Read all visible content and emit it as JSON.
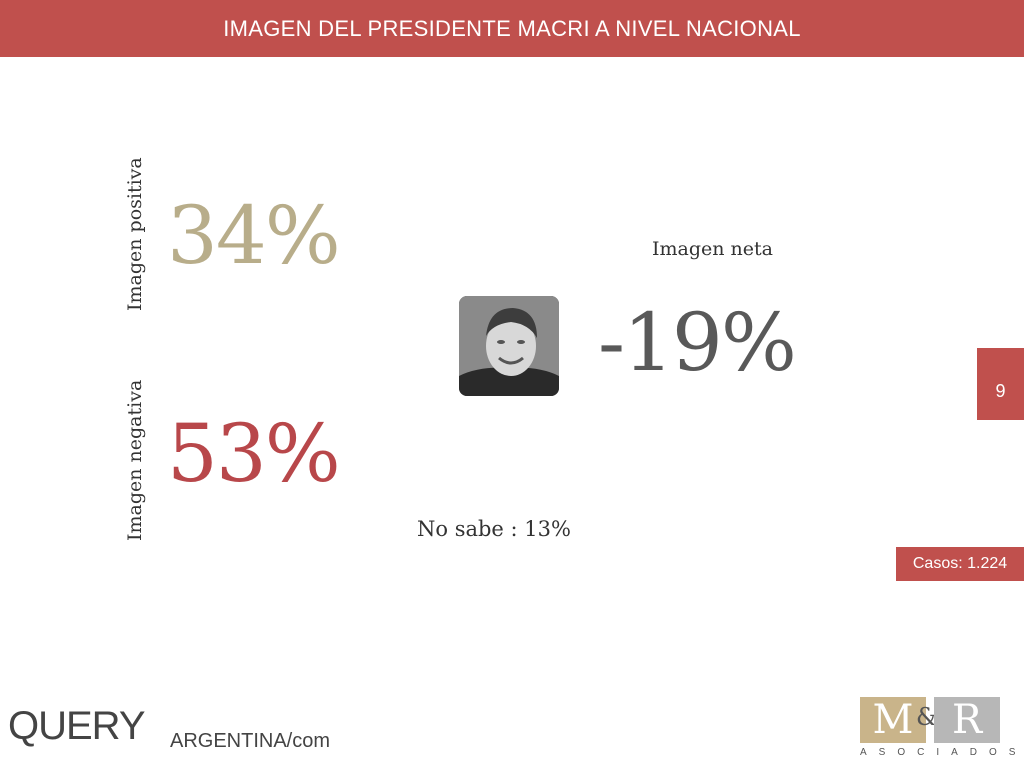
{
  "header": {
    "title": "IMAGEN DEL PRESIDENTE MACRI A NIVEL NACIONAL"
  },
  "labels": {
    "positive": "Imagen positiva",
    "negative": "Imagen negativa",
    "net": "Imagen neta"
  },
  "values": {
    "positive": "34%",
    "negative": "53%",
    "net": "-19%",
    "no_sabe": "No sabe : 13%"
  },
  "page": {
    "number": "9"
  },
  "sample": {
    "casos": "Casos: 1.224"
  },
  "logos": {
    "query_main": "QUERY",
    "query_sub": "ARGENTINA/com",
    "mr_m": "M",
    "mr_amp": "&",
    "mr_r": "R",
    "mr_sub": "ASOCIADOS"
  },
  "colors": {
    "accent": "#c0504d",
    "positive": "#b8ad8a",
    "negative": "#b8474a",
    "net": "#595959"
  }
}
